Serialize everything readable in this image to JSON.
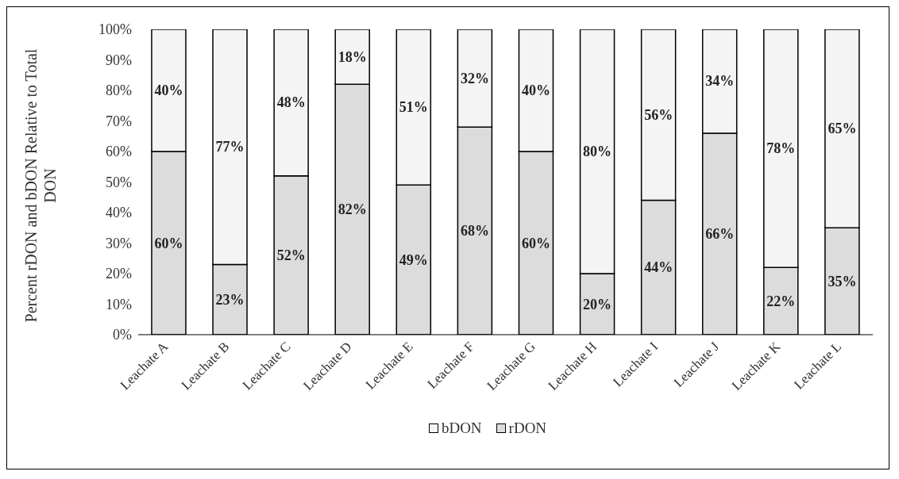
{
  "chart_data": {
    "type": "bar",
    "stacked": true,
    "ylabel": "Percent rDON and bDON Relative to Total DON",
    "categories": [
      "Leachate A",
      "Leachate B",
      "Leachate C",
      "Leachate D",
      "Leachate E",
      "Leachate F",
      "Leachate G",
      "Leachate H",
      "Leachate I",
      "Leachate J",
      "Leachate K",
      "Leachate L"
    ],
    "series": [
      {
        "name": "rDON",
        "color": "#dcdcdc",
        "values": [
          60,
          23,
          52,
          82,
          49,
          68,
          60,
          20,
          44,
          66,
          22,
          35
        ],
        "value_labels": [
          "60%",
          "23%",
          "52%",
          "82%",
          "49%",
          "68%",
          "60%",
          "20%",
          "44%",
          "66%",
          "22%",
          "35%"
        ]
      },
      {
        "name": "bDON",
        "color": "#f4f4f4",
        "values": [
          40,
          77,
          48,
          18,
          51,
          32,
          40,
          80,
          56,
          34,
          78,
          65
        ],
        "value_labels": [
          "40%",
          "77%",
          "48%",
          "18%",
          "51%",
          "32%",
          "40%",
          "80%",
          "56%",
          "34%",
          "78%",
          "65%"
        ]
      }
    ],
    "ylim": [
      0,
      100
    ],
    "yticks": [
      {
        "value": 0,
        "label": "0%"
      },
      {
        "value": 10,
        "label": "10%"
      },
      {
        "value": 20,
        "label": "20%"
      },
      {
        "value": 30,
        "label": "30%"
      },
      {
        "value": 40,
        "label": "40%"
      },
      {
        "value": 50,
        "label": "50%"
      },
      {
        "value": 60,
        "label": "60%"
      },
      {
        "value": 70,
        "label": "70%"
      },
      {
        "value": 80,
        "label": "80%"
      },
      {
        "value": 90,
        "label": "90%"
      },
      {
        "value": 100,
        "label": "100%"
      }
    ],
    "legend": "bottom"
  }
}
